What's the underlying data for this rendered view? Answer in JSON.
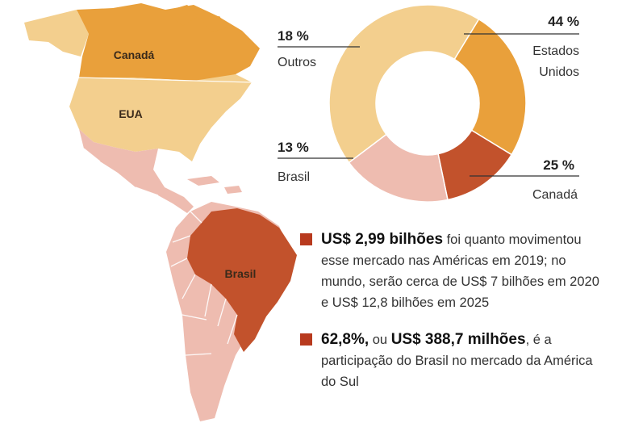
{
  "map": {
    "canada_label": "Canadá",
    "usa_label": "EUA",
    "brazil_label": "Brasil"
  },
  "chart_data": {
    "type": "pie",
    "style": "donut",
    "title": "",
    "slices": [
      {
        "label_lines": [
          "Estados",
          "Unidos"
        ],
        "value": 44,
        "value_text": "44 %",
        "color": "#f3cf8e"
      },
      {
        "label_lines": [
          "Canadá"
        ],
        "value": 25,
        "value_text": "25 %",
        "color": "#e9a03b"
      },
      {
        "label_lines": [
          "Brasil"
        ],
        "value": 13,
        "value_text": "13 %",
        "color": "#c2522c"
      },
      {
        "label_lines": [
          "Outros"
        ],
        "value": 18,
        "value_text": "18 %",
        "color": "#eebcb0"
      }
    ]
  },
  "facts": [
    {
      "highlight": "US$ 2,99 bilhões",
      "text": " foi quanto movimentou esse mercado nas Américas em 2019; no mundo, serão cerca de US$ 7 bilhões em 2020 e US$ 12,8 bilhões em 2025"
    },
    {
      "highlight": "62,8%,",
      "connector": " ou ",
      "highlight2": "US$ 388,7 milhões",
      "text": ", é a participação do Brasil no mercado da América do Sul"
    }
  ],
  "colors": {
    "canada": "#e9a03b",
    "usa": "#f3cf8e",
    "brazil": "#c2522c",
    "others": "#eebcb0",
    "bullet": "#b83a1e"
  }
}
